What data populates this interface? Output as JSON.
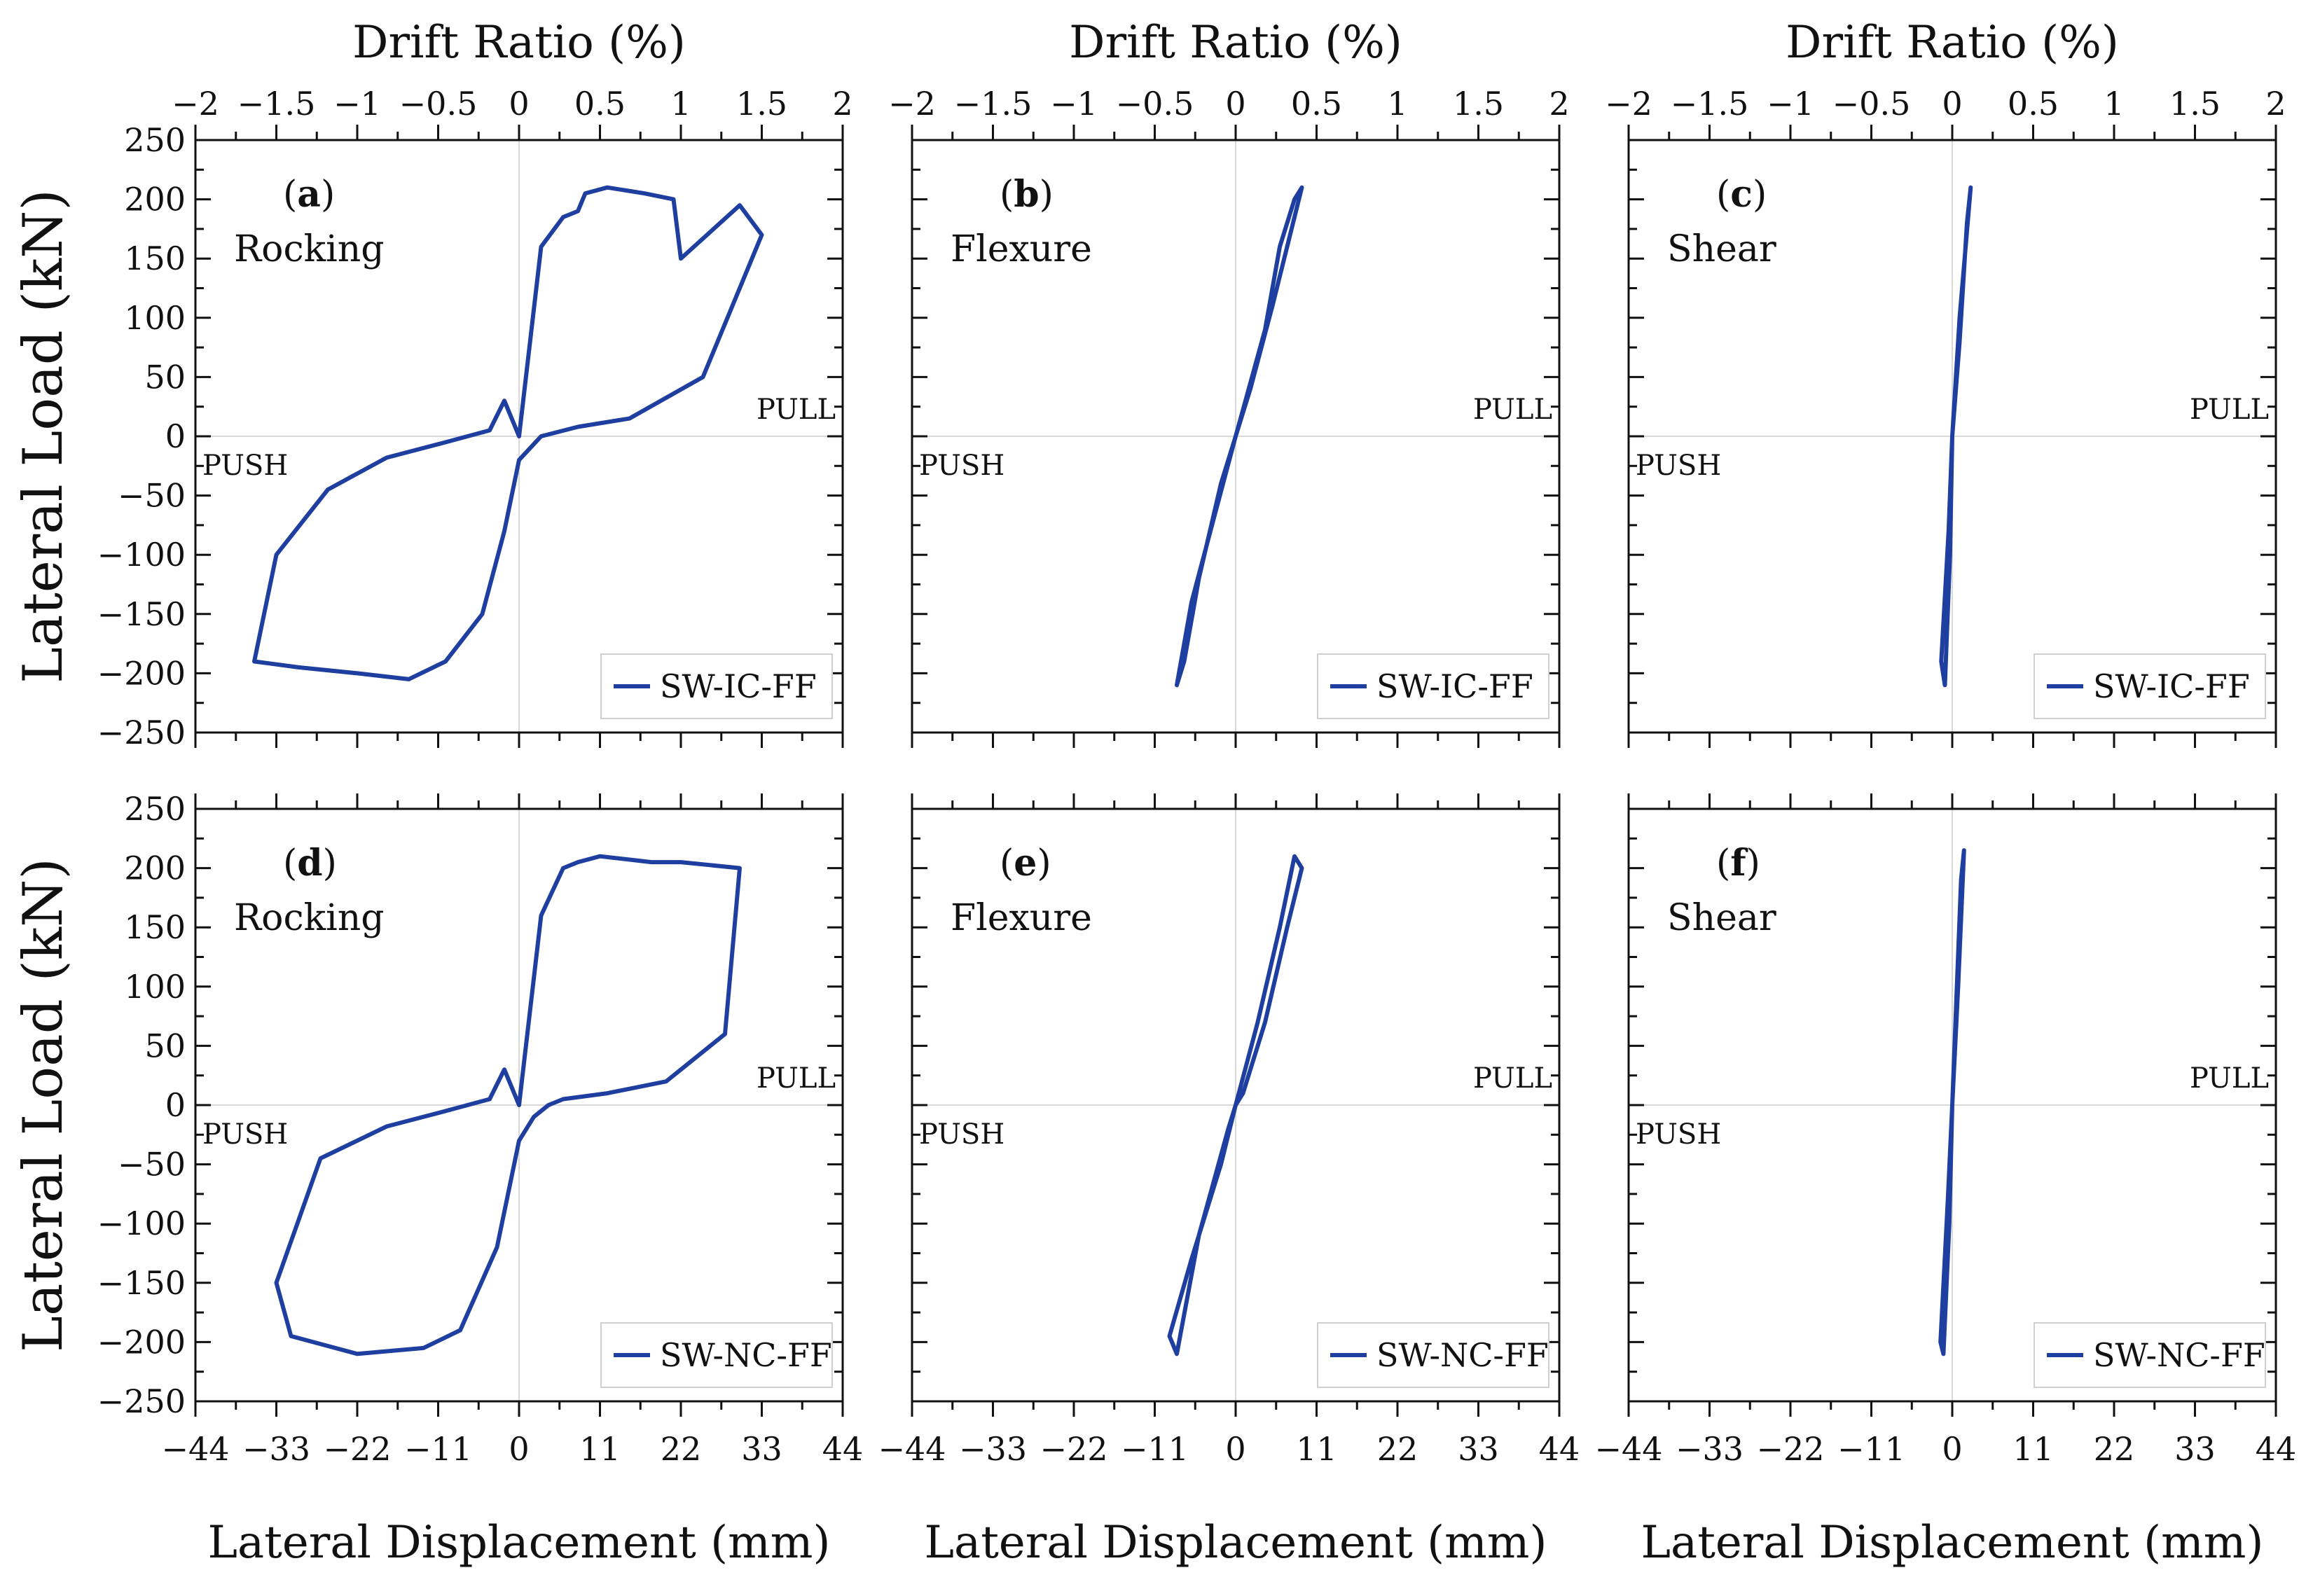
{
  "figure": {
    "top_axis_title": "Drift Ratio (%)",
    "bottom_axis_title": "Lateral Displacement (mm)",
    "y_axis_title": "Lateral Load (kN)",
    "line_color": "#1f3fa0"
  },
  "chart_data": [
    {
      "type": "line",
      "panel": "(a)",
      "panel_letter": "a",
      "label": "Rocking",
      "legend": "SW-IC-FF",
      "push_label": "PUSH",
      "pull_label": "PULL",
      "xlabel": "Lateral Displacement (mm)",
      "ylabel": "Lateral Load (kN)",
      "x2label": "Drift Ratio (%)",
      "xlim": [
        -44,
        44
      ],
      "ylim": [
        -250,
        250
      ],
      "x2lim": [
        -2,
        2
      ],
      "xticks": [
        "−44",
        "−33",
        "−22",
        "−11",
        "0",
        "11",
        "22",
        "33",
        "44"
      ],
      "yticks": [
        "250",
        "200",
        "150",
        "100",
        "50",
        "0",
        "−50",
        "−100",
        "−150",
        "−200",
        "−250"
      ],
      "x2ticks": [
        "−2",
        "−1.5",
        "−1",
        "−0.5",
        "0",
        "0.5",
        "1",
        "1.5",
        "2"
      ],
      "series": [
        {
          "name": "SW-IC-FF",
          "x": [
            0,
            3,
            6,
            8,
            9,
            12,
            17,
            21,
            22,
            30,
            33,
            25,
            15,
            8,
            3,
            0,
            -2,
            -5,
            -10,
            -15,
            -22,
            -30,
            -36,
            -33,
            -26,
            -18,
            -10,
            -4,
            -2,
            0
          ],
          "y": [
            0,
            160,
            185,
            190,
            205,
            210,
            205,
            200,
            150,
            195,
            170,
            50,
            15,
            8,
            0,
            -20,
            -80,
            -150,
            -190,
            -205,
            -200,
            -195,
            -190,
            -100,
            -45,
            -18,
            -5,
            5,
            30,
            0
          ]
        }
      ]
    },
    {
      "type": "line",
      "panel": "(b)",
      "panel_letter": "b",
      "label": "Flexure",
      "legend": "SW-IC-FF",
      "push_label": "PUSH",
      "pull_label": "PULL",
      "xlabel": "Lateral Displacement (mm)",
      "ylabel": "Lateral Load (kN)",
      "x2label": "Drift Ratio (%)",
      "xlim": [
        -44,
        44
      ],
      "ylim": [
        -250,
        250
      ],
      "x2lim": [
        -2,
        2
      ],
      "xticks": [
        "−44",
        "−33",
        "−22",
        "−11",
        "0",
        "11",
        "22",
        "33",
        "44"
      ],
      "yticks": [
        "250",
        "200",
        "150",
        "100",
        "50",
        "0",
        "−50",
        "−100",
        "−150",
        "−200",
        "−250"
      ],
      "x2ticks": [
        "−2",
        "−1.5",
        "−1",
        "−0.5",
        "0",
        "0.5",
        "1",
        "1.5",
        "2"
      ],
      "series": [
        {
          "name": "SW-IC-FF",
          "x": [
            0,
            4,
            6,
            8,
            9,
            8,
            5,
            2,
            0,
            -3,
            -6,
            -8,
            -7,
            -5,
            -2,
            0
          ],
          "y": [
            0,
            90,
            160,
            200,
            210,
            185,
            110,
            40,
            0,
            -70,
            -140,
            -210,
            -190,
            -120,
            -40,
            0
          ]
        }
      ]
    },
    {
      "type": "line",
      "panel": "(c)",
      "panel_letter": "c",
      "label": "Shear",
      "legend": "SW-IC-FF",
      "push_label": "PUSH",
      "pull_label": "PULL",
      "xlabel": "Lateral Displacement (mm)",
      "ylabel": "Lateral Load (kN)",
      "x2label": "Drift Ratio (%)",
      "xlim": [
        -44,
        44
      ],
      "ylim": [
        -250,
        250
      ],
      "x2lim": [
        -2,
        2
      ],
      "xticks": [
        "−44",
        "−33",
        "−22",
        "−11",
        "0",
        "11",
        "22",
        "33",
        "44"
      ],
      "yticks": [
        "250",
        "200",
        "150",
        "100",
        "50",
        "0",
        "−50",
        "−100",
        "−150",
        "−200",
        "−250"
      ],
      "x2ticks": [
        "−2",
        "−1.5",
        "−1",
        "−0.5",
        "0",
        "0.5",
        "1",
        "1.5",
        "2"
      ],
      "series": [
        {
          "name": "SW-IC-FF",
          "x": [
            0,
            1,
            2.5,
            2,
            1,
            0,
            -0.5,
            -1.5,
            -1,
            -0.3,
            0
          ],
          "y": [
            0,
            100,
            210,
            180,
            80,
            0,
            -80,
            -190,
            -210,
            -100,
            0
          ]
        }
      ]
    },
    {
      "type": "line",
      "panel": "(d)",
      "panel_letter": "d",
      "label": "Rocking",
      "legend": "SW-NC-FF",
      "push_label": "PUSH",
      "pull_label": "PULL",
      "xlabel": "Lateral Displacement (mm)",
      "ylabel": "Lateral Load (kN)",
      "x2label": "Drift Ratio (%)",
      "xlim": [
        -44,
        44
      ],
      "ylim": [
        -250,
        250
      ],
      "x2lim": [
        -2,
        2
      ],
      "xticks": [
        "−44",
        "−33",
        "−22",
        "−11",
        "0",
        "11",
        "22",
        "33",
        "44"
      ],
      "yticks": [
        "250",
        "200",
        "150",
        "100",
        "50",
        "0",
        "−50",
        "−100",
        "−150",
        "−200",
        "−250"
      ],
      "x2ticks": [
        "−2",
        "−1.5",
        "−1",
        "−0.5",
        "0",
        "0.5",
        "1",
        "1.5",
        "2"
      ],
      "series": [
        {
          "name": "SW-NC-FF",
          "x": [
            0,
            3,
            6,
            8,
            11,
            18,
            22,
            30,
            28,
            20,
            12,
            6,
            4,
            2,
            0,
            -3,
            -8,
            -13,
            -22,
            -31,
            -33,
            -27,
            -18,
            -10,
            -4,
            -2,
            0
          ],
          "y": [
            0,
            160,
            200,
            205,
            210,
            205,
            205,
            200,
            60,
            20,
            10,
            5,
            0,
            -10,
            -30,
            -120,
            -190,
            -205,
            -210,
            -195,
            -150,
            -45,
            -18,
            -5,
            5,
            30,
            0
          ]
        }
      ]
    },
    {
      "type": "line",
      "panel": "(e)",
      "panel_letter": "e",
      "label": "Flexure",
      "legend": "SW-NC-FF",
      "push_label": "PUSH",
      "pull_label": "PULL",
      "xlabel": "Lateral Displacement (mm)",
      "ylabel": "Lateral Load (kN)",
      "x2label": "Drift Ratio (%)",
      "xlim": [
        -44,
        44
      ],
      "ylim": [
        -250,
        250
      ],
      "x2lim": [
        -2,
        2
      ],
      "xticks": [
        "−44",
        "−33",
        "−22",
        "−11",
        "0",
        "11",
        "22",
        "33",
        "44"
      ],
      "yticks": [
        "250",
        "200",
        "150",
        "100",
        "50",
        "0",
        "−50",
        "−100",
        "−150",
        "−200",
        "−250"
      ],
      "x2ticks": [
        "−2",
        "−1.5",
        "−1",
        "−0.5",
        "0",
        "0.5",
        "1",
        "1.5",
        "2"
      ],
      "series": [
        {
          "name": "SW-NC-FF",
          "x": [
            0,
            3,
            6,
            8,
            9,
            7,
            4,
            1,
            0,
            -2,
            -6,
            -9,
            -8,
            -5,
            -1,
            0
          ],
          "y": [
            0,
            70,
            150,
            210,
            200,
            150,
            70,
            10,
            0,
            -50,
            -130,
            -195,
            -210,
            -110,
            -20,
            0
          ]
        }
      ]
    },
    {
      "type": "line",
      "panel": "(f)",
      "panel_letter": "f",
      "label": "Shear",
      "legend": "SW-NC-FF",
      "push_label": "PUSH",
      "pull_label": "PULL",
      "xlabel": "Lateral Displacement (mm)",
      "ylabel": "Lateral Load (kN)",
      "x2label": "Drift Ratio (%)",
      "xlim": [
        -44,
        44
      ],
      "ylim": [
        -250,
        250
      ],
      "x2lim": [
        -2,
        2
      ],
      "xticks": [
        "−44",
        "−33",
        "−22",
        "−11",
        "0",
        "11",
        "22",
        "33",
        "44"
      ],
      "yticks": [
        "250",
        "200",
        "150",
        "100",
        "50",
        "0",
        "−50",
        "−100",
        "−150",
        "−200",
        "−250"
      ],
      "x2ticks": [
        "−2",
        "−1.5",
        "−1",
        "−0.5",
        "0",
        "0.5",
        "1",
        "1.5",
        "2"
      ],
      "series": [
        {
          "name": "SW-NC-FF",
          "x": [
            0,
            0.8,
            1.6,
            1.2,
            0.5,
            0,
            -0.6,
            -1.6,
            -1.2,
            -0.4,
            0
          ],
          "y": [
            0,
            100,
            215,
            190,
            80,
            0,
            -80,
            -200,
            -210,
            -100,
            0
          ]
        }
      ]
    }
  ]
}
